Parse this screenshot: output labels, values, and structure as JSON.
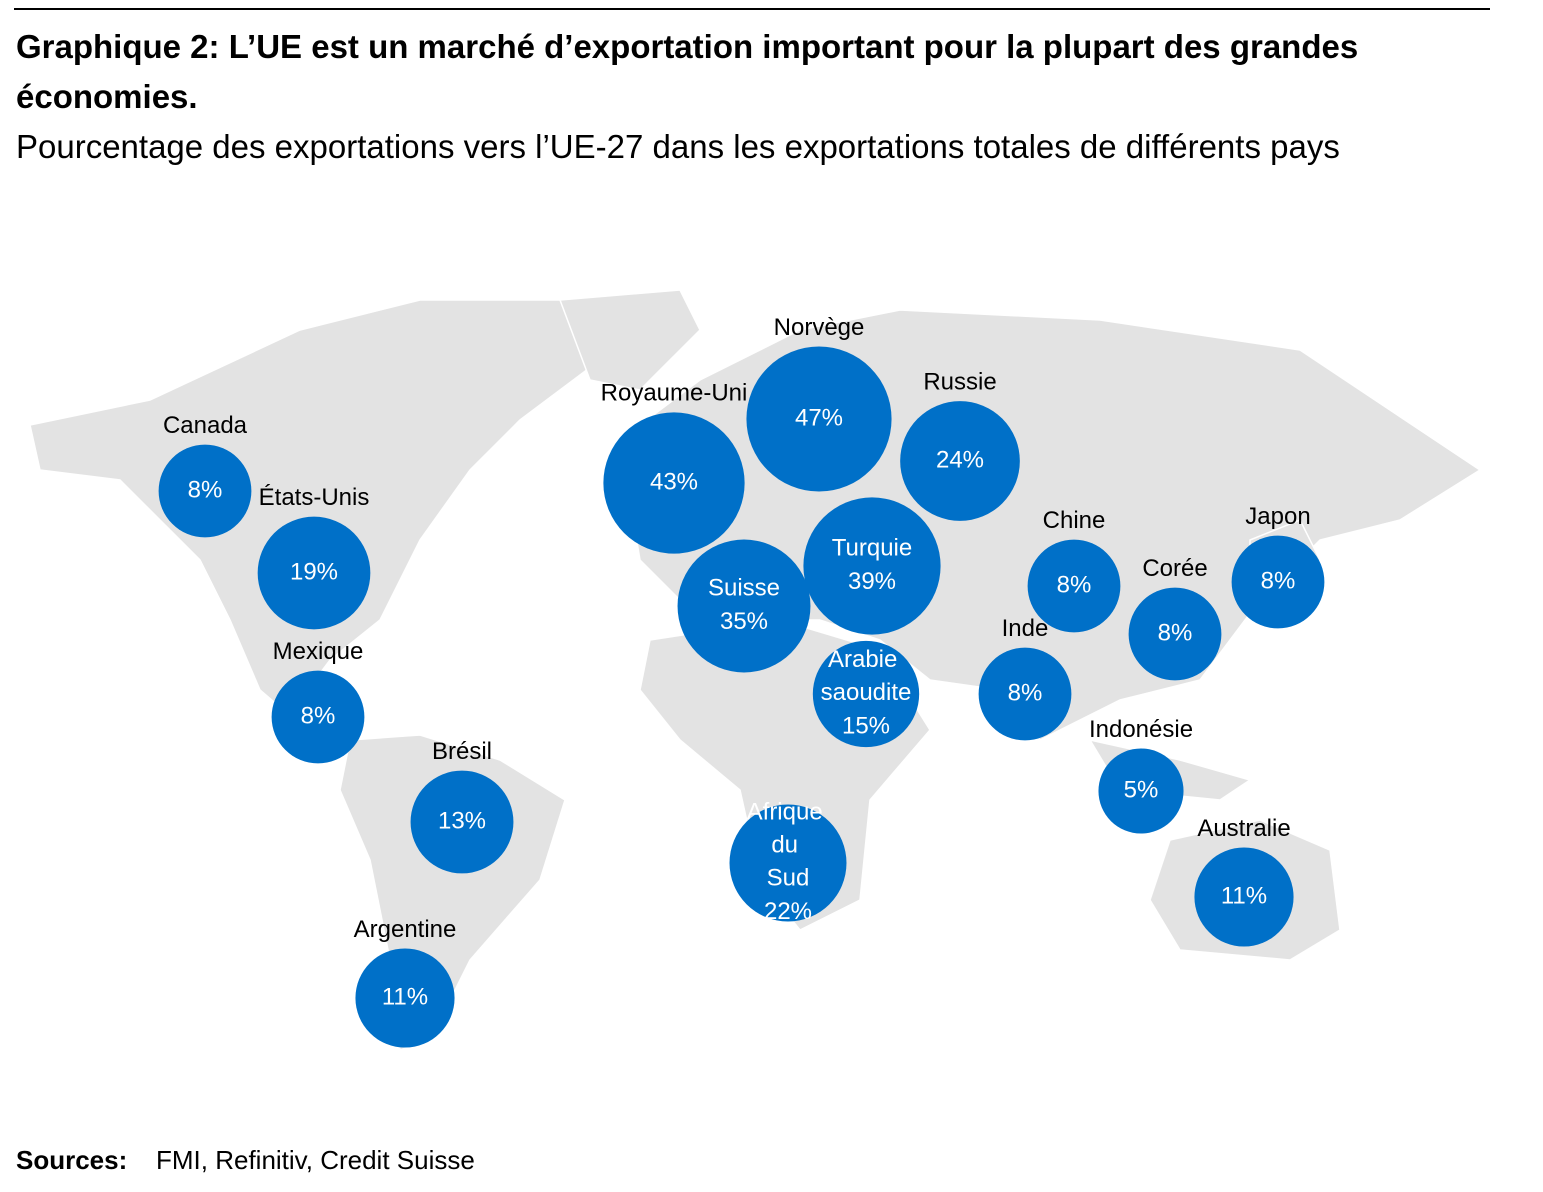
{
  "chart_data": {
    "type": "bubble-map",
    "title": "Graphique 2: L’UE est un marché d’exportation important pour la plupart des grandes économies.",
    "subtitle": "Pourcentage des exportations vers l’UE-27 dans les exportations totales de différents pays",
    "categories": [
      "Canada",
      "États-Unis",
      "Mexique",
      "Brésil",
      "Argentine",
      "Royaume-Uni",
      "Norvège",
      "Russie",
      "Turquie",
      "Suisse",
      "Arabie saoudite",
      "Afrique du Sud",
      "Inde",
      "Chine",
      "Corée",
      "Japon",
      "Indonésie",
      "Australie"
    ],
    "values": [
      8,
      19,
      8,
      13,
      11,
      43,
      47,
      24,
      39,
      35,
      15,
      22,
      8,
      8,
      8,
      8,
      5,
      11
    ],
    "value_labels": [
      "8%",
      "19%",
      "8%",
      "13%",
      "11%",
      "43%",
      "47%",
      "24%",
      "39%",
      "35%",
      "15%",
      "22%",
      "8%",
      "8%",
      "8%",
      "8%",
      "5%",
      "11%"
    ],
    "color": "#0070c8",
    "source_label": "Sources:",
    "source": "FMI, Refinitiv, Credit Suisse"
  }
}
